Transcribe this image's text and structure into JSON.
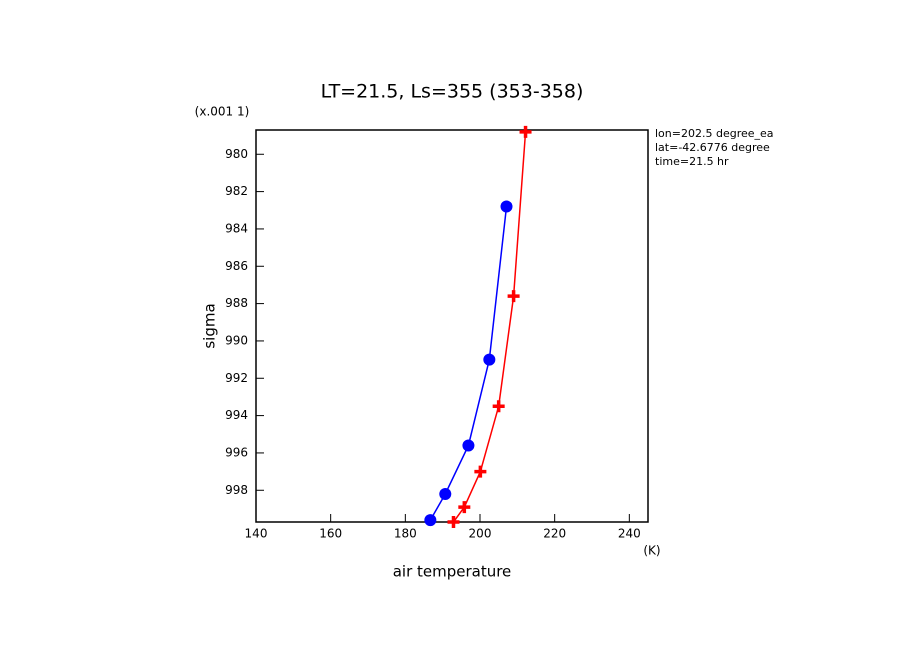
{
  "chart_data": {
    "type": "line",
    "title": "LT=21.5, Ls=355 (353-358)",
    "y_label": "sigma",
    "x_label": "air temperature",
    "x_unit": "(K)",
    "y_multiplier": "(x.001 1)",
    "annotations": [
      "lon=202.5 degree_ea",
      "lat=-42.6776 degree",
      "time=21.5 hr"
    ],
    "series": [
      {
        "color": "#ff0000",
        "marker": "plus",
        "x": [
          212.2,
          209,
          205,
          200.1,
          195.8,
          192.9
        ],
        "values": [
          978.8,
          987.6,
          993.5,
          997.0,
          998.9,
          999.7
        ]
      },
      {
        "color": "#0000ff",
        "marker": "circle",
        "x": [
          207.1,
          202.5,
          196.9,
          190.7,
          186.7
        ],
        "values": [
          982.8,
          991.0,
          995.6,
          998.2,
          999.6
        ]
      }
    ],
    "xlim": [
      140,
      245
    ],
    "xticks": [
      140,
      160,
      180,
      200,
      220,
      240
    ],
    "ylim": [
      999.7,
      978.7
    ],
    "yticks": [
      980,
      982,
      984,
      986,
      988,
      990,
      992,
      994,
      996,
      998
    ]
  }
}
